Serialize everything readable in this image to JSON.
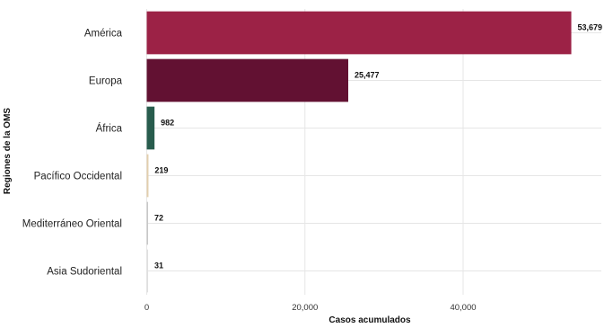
{
  "chart_data": {
    "type": "bar",
    "orientation": "horizontal",
    "categories": [
      "América",
      "Europa",
      "África",
      "Pacífico Occidental",
      "Mediterráneo Oriental",
      "Asia Sudoriental"
    ],
    "values": [
      53679,
      25477,
      982,
      219,
      72,
      31
    ],
    "value_labels": [
      "53,679",
      "25,477",
      "982",
      "219",
      "72",
      "31"
    ],
    "colors": [
      "#9c2246",
      "#621132",
      "#285c4d",
      "#e3cfad",
      "#c8c8c8",
      "#e0e0e0"
    ],
    "xlabel": "Casos acumulados",
    "ylabel": "Regiones de la OMS",
    "xlim": [
      0,
      60000
    ],
    "xticks": [
      0,
      20000,
      40000
    ],
    "xtick_labels": [
      "0",
      "20,000",
      "40,000"
    ],
    "grid": true,
    "legend": "none"
  }
}
